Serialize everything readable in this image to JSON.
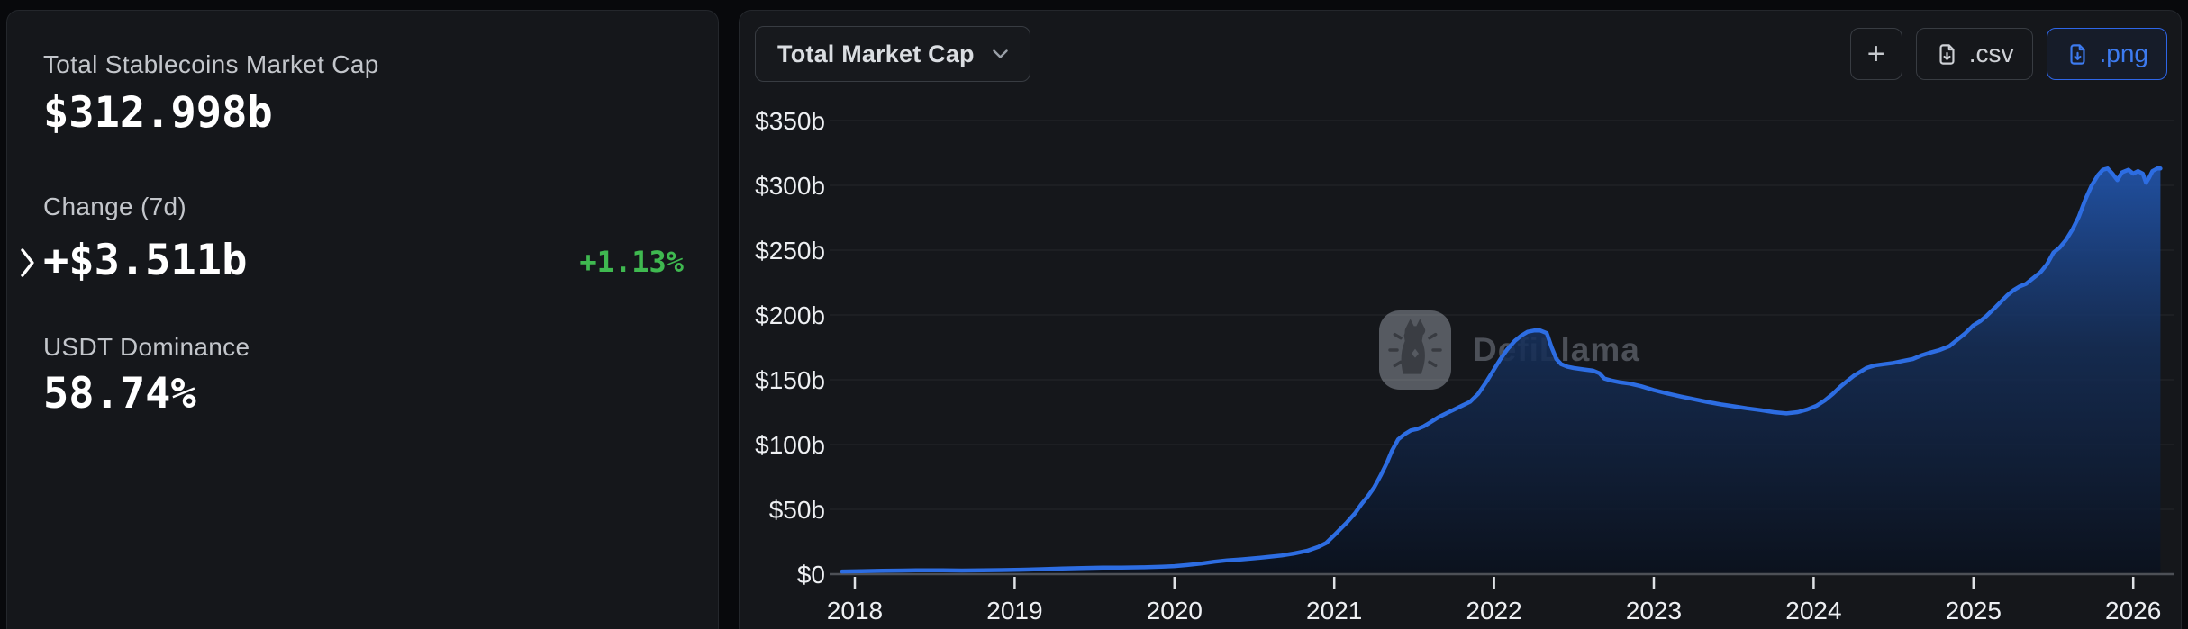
{
  "stats": {
    "market_cap": {
      "label": "Total Stablecoins Market Cap",
      "value": "$312.998b"
    },
    "change": {
      "label": "Change (7d)",
      "value": "+$3.511b",
      "percent": "+1.13%"
    },
    "dominance": {
      "label": "USDT Dominance",
      "value": "58.74%"
    }
  },
  "toolbar": {
    "metric_dropdown_label": "Total Market Cap",
    "add_button_label": "+",
    "csv_button_label": ".csv",
    "png_button_label": ".png"
  },
  "watermark_text": "DefiLlama",
  "colors": {
    "accent_blue": "#3d7bf0",
    "line_blue": "#2d6de2",
    "positive_green": "#3fb950",
    "card_background": "#15171b",
    "page_background": "#08090c"
  },
  "chart_data": {
    "type": "area",
    "title": "Total Market Cap",
    "series_name": "Total Stablecoins Market Cap",
    "unit": "USD billions",
    "x_unit": "year",
    "xlim": [
      2017.9,
      2026.3
    ],
    "ylim": [
      0,
      350
    ],
    "grid": "horizontal",
    "legend": "none",
    "line_color": "#2d6de2",
    "area_top_color": "#2560c4",
    "area_bottom_color": "#0a111e",
    "x_ticks": [
      2018,
      2019,
      2020,
      2021,
      2022,
      2023,
      2024,
      2025,
      2026
    ],
    "y_ticks": [
      {
        "value": 0,
        "label": "$0"
      },
      {
        "value": 50,
        "label": "$50b"
      },
      {
        "value": 100,
        "label": "$100b"
      },
      {
        "value": 150,
        "label": "$150b"
      },
      {
        "value": 200,
        "label": "$200b"
      },
      {
        "value": 250,
        "label": "$250b"
      },
      {
        "value": 300,
        "label": "$300b"
      },
      {
        "value": 350,
        "label": "$350b"
      }
    ],
    "points": [
      [
        2017.92,
        2
      ],
      [
        2018.04,
        2.3
      ],
      [
        2018.17,
        2.6
      ],
      [
        2018.3,
        2.8
      ],
      [
        2018.42,
        3
      ],
      [
        2018.55,
        2.9
      ],
      [
        2018.67,
        2.8
      ],
      [
        2018.8,
        2.9
      ],
      [
        2018.92,
        3.1
      ],
      [
        2019.04,
        3.4
      ],
      [
        2019.17,
        3.8
      ],
      [
        2019.3,
        4.3
      ],
      [
        2019.42,
        4.7
      ],
      [
        2019.55,
        5
      ],
      [
        2019.67,
        5.1
      ],
      [
        2019.8,
        5.3
      ],
      [
        2019.92,
        5.7
      ],
      [
        2020.0,
        6.2
      ],
      [
        2020.08,
        7
      ],
      [
        2020.17,
        8.2
      ],
      [
        2020.25,
        9.6
      ],
      [
        2020.33,
        10.6
      ],
      [
        2020.42,
        11.4
      ],
      [
        2020.5,
        12.2
      ],
      [
        2020.58,
        13.2
      ],
      [
        2020.67,
        14.4
      ],
      [
        2020.75,
        16
      ],
      [
        2020.83,
        18
      ],
      [
        2020.9,
        21
      ],
      [
        2020.95,
        24
      ],
      [
        2021.0,
        30
      ],
      [
        2021.04,
        35
      ],
      [
        2021.08,
        40
      ],
      [
        2021.13,
        47
      ],
      [
        2021.17,
        54
      ],
      [
        2021.21,
        60
      ],
      [
        2021.25,
        67
      ],
      [
        2021.29,
        76
      ],
      [
        2021.33,
        86
      ],
      [
        2021.36,
        95
      ],
      [
        2021.4,
        104
      ],
      [
        2021.44,
        108
      ],
      [
        2021.48,
        111
      ],
      [
        2021.52,
        112
      ],
      [
        2021.56,
        114
      ],
      [
        2021.6,
        117
      ],
      [
        2021.65,
        121
      ],
      [
        2021.7,
        124
      ],
      [
        2021.75,
        127
      ],
      [
        2021.8,
        130
      ],
      [
        2021.85,
        133
      ],
      [
        2021.9,
        139
      ],
      [
        2021.95,
        148
      ],
      [
        2022.0,
        158
      ],
      [
        2022.04,
        166
      ],
      [
        2022.08,
        173
      ],
      [
        2022.13,
        180
      ],
      [
        2022.17,
        184
      ],
      [
        2022.21,
        187
      ],
      [
        2022.25,
        188
      ],
      [
        2022.29,
        188
      ],
      [
        2022.33,
        186
      ],
      [
        2022.36,
        175
      ],
      [
        2022.39,
        166
      ],
      [
        2022.42,
        162
      ],
      [
        2022.46,
        160
      ],
      [
        2022.5,
        159
      ],
      [
        2022.56,
        158
      ],
      [
        2022.62,
        157
      ],
      [
        2022.66,
        155
      ],
      [
        2022.69,
        151
      ],
      [
        2022.73,
        149.5
      ],
      [
        2022.79,
        148
      ],
      [
        2022.85,
        147
      ],
      [
        2022.92,
        145
      ],
      [
        2023.0,
        142
      ],
      [
        2023.08,
        139.5
      ],
      [
        2023.17,
        137
      ],
      [
        2023.25,
        135
      ],
      [
        2023.33,
        133
      ],
      [
        2023.42,
        131
      ],
      [
        2023.5,
        129.5
      ],
      [
        2023.58,
        128
      ],
      [
        2023.67,
        126.5
      ],
      [
        2023.75,
        125
      ],
      [
        2023.83,
        124
      ],
      [
        2023.9,
        125
      ],
      [
        2023.96,
        127
      ],
      [
        2024.02,
        130
      ],
      [
        2024.07,
        134
      ],
      [
        2024.12,
        139
      ],
      [
        2024.17,
        145
      ],
      [
        2024.21,
        149
      ],
      [
        2024.25,
        153
      ],
      [
        2024.29,
        156
      ],
      [
        2024.33,
        159
      ],
      [
        2024.38,
        161
      ],
      [
        2024.44,
        162
      ],
      [
        2024.5,
        163
      ],
      [
        2024.56,
        164.5
      ],
      [
        2024.62,
        166
      ],
      [
        2024.68,
        169
      ],
      [
        2024.73,
        171
      ],
      [
        2024.79,
        173
      ],
      [
        2024.85,
        176
      ],
      [
        2024.9,
        181
      ],
      [
        2024.95,
        186
      ],
      [
        2025.0,
        192
      ],
      [
        2025.04,
        195
      ],
      [
        2025.08,
        199
      ],
      [
        2025.13,
        205
      ],
      [
        2025.17,
        210
      ],
      [
        2025.21,
        215
      ],
      [
        2025.25,
        219
      ],
      [
        2025.29,
        222
      ],
      [
        2025.33,
        224
      ],
      [
        2025.38,
        229
      ],
      [
        2025.42,
        233
      ],
      [
        2025.46,
        239
      ],
      [
        2025.5,
        248
      ],
      [
        2025.54,
        252
      ],
      [
        2025.58,
        258
      ],
      [
        2025.62,
        266
      ],
      [
        2025.66,
        276
      ],
      [
        2025.7,
        289
      ],
      [
        2025.74,
        300
      ],
      [
        2025.78,
        308
      ],
      [
        2025.81,
        312
      ],
      [
        2025.84,
        313
      ],
      [
        2025.87,
        309
      ],
      [
        2025.9,
        304
      ],
      [
        2025.93,
        310
      ],
      [
        2025.97,
        312
      ],
      [
        2026.0,
        309
      ],
      [
        2026.03,
        311
      ],
      [
        2026.06,
        309
      ],
      [
        2026.08,
        302
      ],
      [
        2026.1,
        306
      ],
      [
        2026.12,
        311
      ],
      [
        2026.15,
        313
      ],
      [
        2026.17,
        313
      ]
    ]
  }
}
